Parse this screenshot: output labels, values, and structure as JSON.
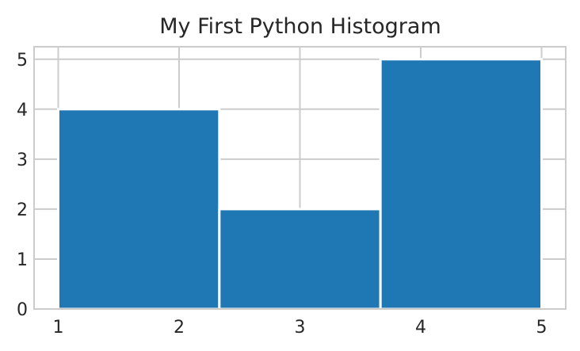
{
  "chart_data": {
    "type": "bar",
    "title": "My First Python Histogram",
    "xlabel": "",
    "ylabel": "",
    "bins": [
      {
        "start": 1.0,
        "end": 2.3333,
        "count": 4
      },
      {
        "start": 2.3333,
        "end": 3.6667,
        "count": 2
      },
      {
        "start": 3.6667,
        "end": 5.0,
        "count": 5
      }
    ],
    "xlim": [
      0.8,
      5.2
    ],
    "ylim": [
      0,
      5.25
    ],
    "xticks": [
      1,
      2,
      3,
      4,
      5
    ],
    "yticks": [
      0,
      1,
      2,
      3,
      4,
      5
    ],
    "grid": true,
    "bar_color": "#1f77b4",
    "grid_color": "#cccccc",
    "text_color": "#262626"
  }
}
